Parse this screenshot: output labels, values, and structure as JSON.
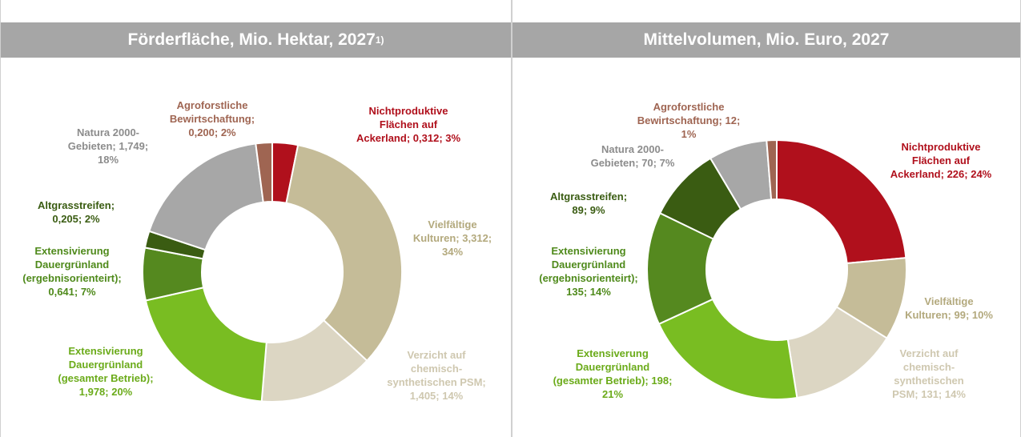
{
  "chart_data": [
    {
      "type": "donut",
      "title": "Förderfläche, Mio. Hektar, 2027",
      "title_note": "1)",
      "categories": [
        "Nichtproduktive Flächen auf Ackerland;",
        "Vielfältige Kulturen;",
        "Verzicht auf chemisch-synthetischen PSM;",
        "Extensivierung Dauergrünland (gesamter Betrieb);",
        "Extensivierung Dauergrünland (ergebnisorienteirt);",
        "Altgrasstreifen;",
        "Natura 2000-Gebieten;",
        "Agroforstliche Bewirtschaftung;"
      ],
      "values": [
        0.312,
        3.312,
        1.405,
        1.978,
        0.641,
        0.205,
        1.749,
        0.2
      ],
      "value_labels": [
        "0,312; 3%",
        "3,312; 34%",
        "1,405; 14%",
        "1,978; 20%",
        "0,641; 7%",
        "0,205; 2%",
        "1,749; 18%",
        "0,200; 2%"
      ],
      "colors": [
        "#b0101c",
        "#c5bc98",
        "#dcd6c3",
        "#79bd22",
        "#55891f",
        "#3a5c12",
        "#a7a7a7",
        "#9f6552"
      ],
      "label_colors": [
        "#b0101c",
        "#b3a97d",
        "#cfc8b0",
        "#6bab1a",
        "#4f8a1b",
        "#3a5c12",
        "#8c8c8c",
        "#9f6552"
      ]
    },
    {
      "type": "donut",
      "title": "Mittelvolumen, Mio. Euro, 2027",
      "categories": [
        "Nichtproduktive Flächen auf Ackerland;",
        "Vielfältige Kulturen;",
        "Verzicht auf chemisch-synthetischen PSM;",
        "Extensiverung Dauergrünland (gesamter Betrieb);",
        "Extensivierung Dauergrünland (ergebnisorienteirt);",
        "Altgrasstreifen;",
        "Natura 2000-Gebieten;",
        "Agroforstliche Bewirtschaftung;"
      ],
      "values": [
        226,
        99,
        131,
        198,
        135,
        89,
        70,
        12
      ],
      "value_labels": [
        "226; 24%",
        "99; 10%",
        "131; 14%",
        "198; 21%",
        "135; 14%",
        "89; 9%",
        "70; 7%",
        "12; 1%"
      ],
      "colors": [
        "#b0101c",
        "#c5bc98",
        "#dcd6c3",
        "#79bd22",
        "#55891f",
        "#3a5c12",
        "#a7a7a7",
        "#9f6552"
      ],
      "label_colors": [
        "#b0101c",
        "#b3a97d",
        "#cfc8b0",
        "#6bab1a",
        "#4f8a1b",
        "#3a5c12",
        "#8c8c8c",
        "#9f6552"
      ]
    }
  ]
}
